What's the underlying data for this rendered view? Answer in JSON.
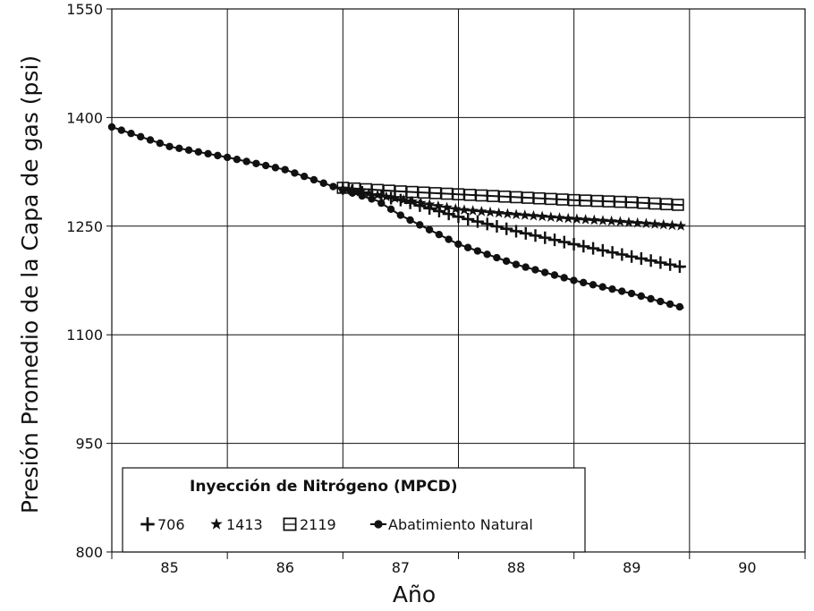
{
  "chart_data": {
    "type": "line",
    "xlabel": "Año",
    "ylabel": "Presión Promedio de la Capa de gas (psi)",
    "xlim": [
      84.5,
      90.5
    ],
    "ylim": [
      800,
      1550
    ],
    "x_ticks": [
      "85",
      "86",
      "87",
      "88",
      "89",
      "90"
    ],
    "y_ticks": [
      "800",
      "950",
      "1100",
      "1250",
      "1400",
      "1550"
    ],
    "grid": true,
    "legend": {
      "title": "Inyección de Nitrógeno (MPCD)",
      "placement": "bottom-left"
    },
    "series": [
      {
        "name": "Abatimiento Natural",
        "marker": "circle",
        "x": [
          84.5,
          85.0,
          85.5,
          86.0,
          86.5,
          86.8,
          87.0,
          87.5,
          88.0,
          88.5,
          89.0,
          89.45
        ],
        "y": [
          1387,
          1360,
          1345,
          1328,
          1300,
          1285,
          1265,
          1225,
          1197,
          1175,
          1157,
          1137
        ]
      },
      {
        "name": "706",
        "marker": "plus",
        "x": [
          86.5,
          87.0,
          87.5,
          88.0,
          88.5,
          89.0,
          89.45
        ],
        "y": [
          1302,
          1286,
          1263,
          1243,
          1225,
          1208,
          1193
        ]
      },
      {
        "name": "1413",
        "marker": "star",
        "x": [
          86.5,
          87.0,
          87.5,
          88.0,
          88.5,
          89.0,
          89.45
        ],
        "y": [
          1302,
          1287,
          1273,
          1266,
          1260,
          1255,
          1250
        ]
      },
      {
        "name": "2119",
        "marker": "square",
        "x": [
          86.5,
          87.0,
          87.5,
          88.0,
          88.5,
          89.0,
          89.45
        ],
        "y": [
          1303,
          1298,
          1294,
          1290,
          1286,
          1283,
          1279
        ]
      }
    ]
  }
}
